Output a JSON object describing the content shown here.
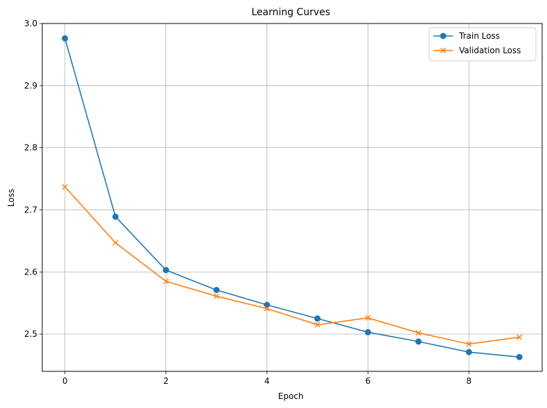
{
  "chart_data": {
    "type": "line",
    "title": "Learning Curves",
    "xlabel": "Epoch",
    "ylabel": "Loss",
    "x": [
      0,
      1,
      2,
      3,
      4,
      5,
      6,
      7,
      8,
      9
    ],
    "xlim": [
      -0.45,
      9.45
    ],
    "ylim": [
      2.44,
      3.0
    ],
    "xticks": [
      0,
      2,
      4,
      6,
      8
    ],
    "yticks": [
      2.5,
      2.6,
      2.7,
      2.8,
      2.9,
      3.0
    ],
    "ytick_labels": [
      "2.5",
      "2.6",
      "2.7",
      "2.8",
      "2.9",
      "3.0"
    ],
    "grid": true,
    "legend_position": "top-right",
    "series": [
      {
        "name": "Train Loss",
        "color": "#1f77b4",
        "marker": "circle",
        "values": [
          2.976,
          2.689,
          2.603,
          2.571,
          2.547,
          2.525,
          2.503,
          2.488,
          2.471,
          2.463
        ]
      },
      {
        "name": "Validation Loss",
        "color": "#ff7f0e",
        "marker": "x",
        "values": [
          2.737,
          2.647,
          2.585,
          2.561,
          2.541,
          2.515,
          2.526,
          2.502,
          2.484,
          2.495
        ]
      }
    ]
  }
}
